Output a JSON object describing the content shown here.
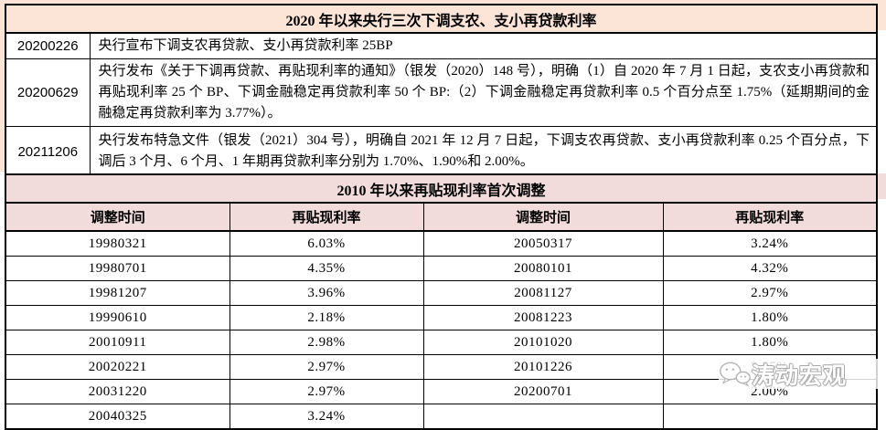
{
  "table1": {
    "title": "2020 年以来央行三次下调支农、支小再贷款利率",
    "rows": [
      {
        "date": "20200226",
        "text": "央行宣布下调支农再贷款、支小再贷款利率 25BP"
      },
      {
        "date": "20200629",
        "text": "央行发布《关于下调再贷款、再贴现利率的通知》（银发（2020）148 号），明确（1）自 2020 年 7 月 1 日起，支农支小再贷款和再贴现利率 25 个 BP、下调金融稳定再贷款利率 50 个 BP:（2）下调金融稳定再贷款利率 0.5 个百分点至 1.75%（延期期间的金融稳定再贷款利率为 3.77%）。"
      },
      {
        "date": "20211206",
        "text": "央行发布特急文件（银发（2021）304 号），明确自 2021 年 12 月 7 日起，下调支农再贷款、支小再贷款利率 0.25 个百分点，下调后 3 个月、6 个月、1 年期再贷款利率分别为 1.70%、1.90%和 2.00%。"
      }
    ]
  },
  "table2": {
    "title": "2010 年以来再贴现利率首次调整",
    "headers": [
      "调整时间",
      "再贴现利率",
      "调整时间",
      "再贴现利率"
    ],
    "rows": [
      [
        "19980321",
        "6.03%",
        "20050317",
        "3.24%"
      ],
      [
        "19980701",
        "4.35%",
        "20080101",
        "4.32%"
      ],
      [
        "19981207",
        "3.96%",
        "20081127",
        "2.97%"
      ],
      [
        "19990610",
        "2.18%",
        "20081223",
        "1.80%"
      ],
      [
        "20010911",
        "2.98%",
        "20101020",
        "1.80%"
      ],
      [
        "20020221",
        "2.97%",
        "20101226",
        "2.25%"
      ],
      [
        "20031220",
        "2.97%",
        "20200701",
        "2.00%"
      ],
      [
        "20040325",
        "3.24%",
        "",
        ""
      ]
    ]
  },
  "watermark": {
    "text": "涛动宏观",
    "icon": "wechat-icon"
  },
  "colors": {
    "table1_header_bg": "#fce4d6",
    "table2_header_bg": "#f2dcdb",
    "border": "#000000",
    "watermark_outline": "#a8a8a8"
  }
}
